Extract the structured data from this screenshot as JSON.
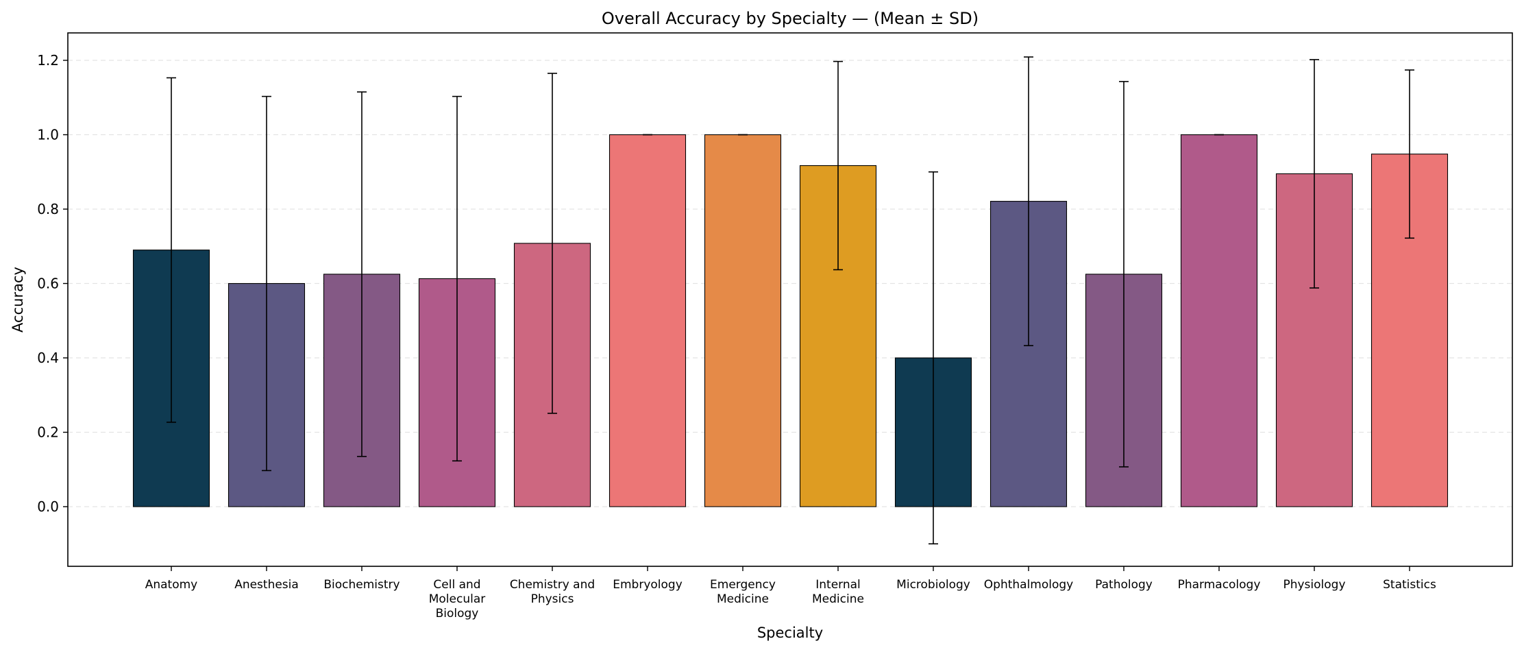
{
  "chart_data": {
    "type": "bar",
    "title": "Overall Accuracy by Specialty — (Mean ± SD)",
    "xlabel": "Specialty",
    "ylabel": "Accuracy",
    "ylim": [
      -0.16,
      1.27
    ],
    "yticks": [
      0.0,
      0.2,
      0.4,
      0.6,
      0.8,
      1.0,
      1.2
    ],
    "ytick_labels": [
      "0.0",
      "0.2",
      "0.4",
      "0.6",
      "0.8",
      "1.0",
      "1.2"
    ],
    "grid": "y-dashed",
    "categories": [
      [
        "Anatomy"
      ],
      [
        "Anesthesia"
      ],
      [
        "Biochemistry"
      ],
      [
        "Cell and",
        "Molecular",
        "Biology"
      ],
      [
        "Chemistry and",
        "Physics"
      ],
      [
        "Embryology"
      ],
      [
        "Emergency",
        "Medicine"
      ],
      [
        "Internal",
        "Medicine"
      ],
      [
        "Microbiology"
      ],
      [
        "Ophthalmology"
      ],
      [
        "Pathology"
      ],
      [
        "Pharmacology"
      ],
      [
        "Physiology"
      ],
      [
        "Statistics"
      ]
    ],
    "values": [
      0.69,
      0.6,
      0.625,
      0.613,
      0.708,
      1.0,
      1.0,
      0.917,
      0.4,
      0.821,
      0.625,
      1.0,
      0.895,
      0.948
    ],
    "error_sd": [
      0.463,
      0.503,
      0.49,
      0.49,
      0.457,
      0.0,
      0.0,
      0.28,
      0.5,
      0.388,
      0.518,
      0.0,
      0.307,
      0.226
    ],
    "colors": [
      "#0f3a51",
      "#5c5883",
      "#845985",
      "#b05a8a",
      "#cd6780",
      "#ec7676",
      "#e58a48",
      "#de9c22",
      "#0f3a51",
      "#5c5883",
      "#845985",
      "#b05a8a",
      "#cd6780",
      "#ec7676"
    ]
  }
}
